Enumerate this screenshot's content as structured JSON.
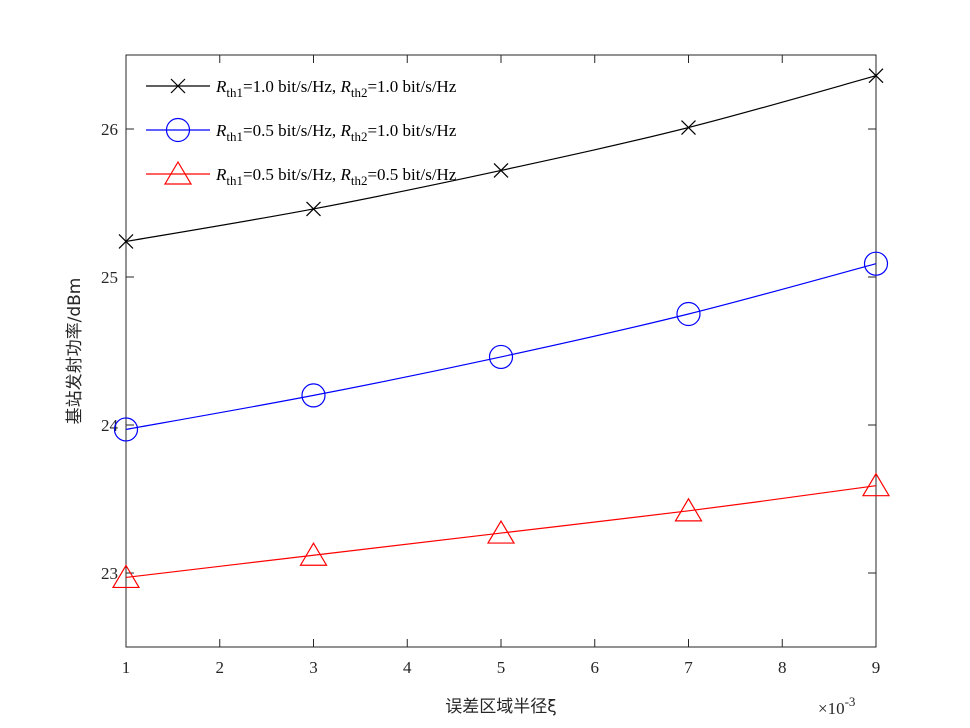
{
  "chart_data": {
    "type": "line",
    "xlabel": "误差区域半径ξ",
    "ylabel": "基站发射功率/dBm",
    "x_multiplier_label": "×10",
    "x_multiplier_exp": "-3",
    "xlim": [
      1,
      9
    ],
    "ylim": [
      22.5,
      26.5
    ],
    "xticks": [
      1,
      2,
      3,
      4,
      5,
      6,
      7,
      8,
      9
    ],
    "yticks": [
      23,
      24,
      25,
      26
    ],
    "grid": false,
    "legend_position": "top-left",
    "x": [
      1,
      3,
      5,
      7,
      9
    ],
    "series": [
      {
        "name": "R_th1=1.0 bit/s/Hz, R_th2=1.0 bit/s/Hz",
        "legend_parts": [
          "R",
          "th1",
          "=1.0 bit/s/Hz, ",
          "R",
          "th2",
          "=1.0 bit/s/Hz"
        ],
        "color": "#000000",
        "marker": "x",
        "values": [
          25.24,
          25.46,
          25.72,
          26.01,
          26.36
        ]
      },
      {
        "name": "R_th1=0.5 bit/s/Hz, R_th2=1.0 bit/s/Hz",
        "legend_parts": [
          "R",
          "th1",
          "=0.5 bit/s/Hz, ",
          "R",
          "th2",
          "=1.0 bit/s/Hz"
        ],
        "color": "#0000ff",
        "marker": "circle",
        "values": [
          23.97,
          24.2,
          24.46,
          24.75,
          25.09
        ]
      },
      {
        "name": "R_th1=0.5 bit/s/Hz, R_th2=0.5 bit/s/Hz",
        "legend_parts": [
          "R",
          "th1",
          "=0.5 bit/s/Hz, ",
          "R",
          "th2",
          "=0.5 bit/s/Hz"
        ],
        "color": "#ff0000",
        "marker": "triangle",
        "values": [
          22.97,
          23.12,
          23.27,
          23.42,
          23.59
        ]
      }
    ]
  }
}
